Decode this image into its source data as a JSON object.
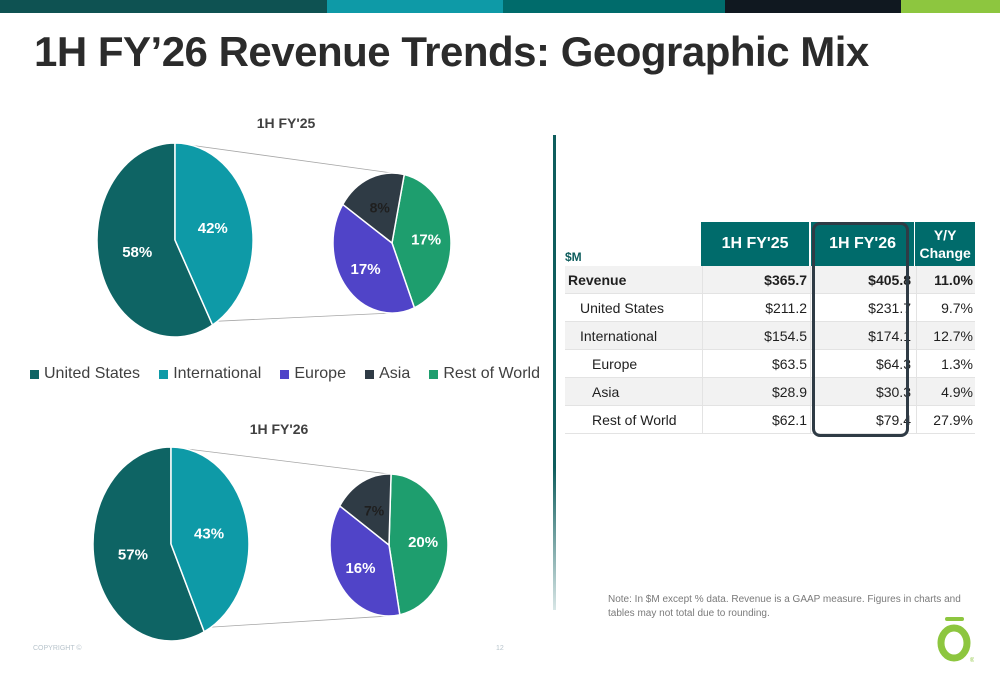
{
  "page_title": "1H FY’26 Revenue Trends: Geographic Mix",
  "top_bar_colors": [
    "#0e5252",
    "#0e9aa7",
    "#006b6b",
    "#101820",
    "#8dc63f"
  ],
  "colors": {
    "united_states": "#0e6464",
    "international": "#0e9aa7",
    "europe": "#5044c8",
    "asia": "#2f3b45",
    "rest_of_world": "#1e9e6e"
  },
  "legend": [
    {
      "label": "United States",
      "color": "#0e6464"
    },
    {
      "label": "International",
      "color": "#0e9aa7"
    },
    {
      "label": "Europe",
      "color": "#5044c8"
    },
    {
      "label": "Asia",
      "color": "#2f3b45"
    },
    {
      "label": "Rest of World",
      "color": "#1e9e6e"
    }
  ],
  "chart_data": [
    {
      "type": "pie",
      "title": "1H FY'25",
      "main": {
        "categories": [
          "United States",
          "International"
        ],
        "values": [
          58,
          42
        ],
        "labels": [
          "58%",
          "42%"
        ]
      },
      "breakout": {
        "categories": [
          "Europe",
          "Asia",
          "Rest of World"
        ],
        "values": [
          17,
          8,
          17
        ],
        "labels": [
          "17%",
          "8%",
          "17%"
        ]
      }
    },
    {
      "type": "pie",
      "title": "1H FY'26",
      "main": {
        "categories": [
          "United States",
          "International"
        ],
        "values": [
          57,
          43
        ],
        "labels": [
          "57%",
          "43%"
        ]
      },
      "breakout": {
        "categories": [
          "Europe",
          "Asia",
          "Rest of World"
        ],
        "values": [
          16,
          7,
          20
        ],
        "labels": [
          "16%",
          "7%",
          "20%"
        ]
      }
    },
    {
      "type": "table",
      "unit_label": "$M",
      "columns": [
        "1H FY'25",
        "1H FY'26",
        "Y/Y Change"
      ],
      "yoy_header_lines": [
        "Y/Y",
        "Change"
      ],
      "rows": [
        {
          "label": "Revenue",
          "fy25": "$365.7",
          "fy26": "$405.8",
          "yoy": "11.0%"
        },
        {
          "label": "United States",
          "fy25": "$211.2",
          "fy26": "$231.7",
          "yoy": "9.7%"
        },
        {
          "label": "International",
          "fy25": "$154.5",
          "fy26": "$174.1",
          "yoy": "12.7%"
        },
        {
          "label": "Europe",
          "fy25": "$63.5",
          "fy26": "$64.3",
          "yoy": "1.3%"
        },
        {
          "label": "Asia",
          "fy25": "$28.9",
          "fy26": "$30.3",
          "yoy": "4.9%"
        },
        {
          "label": "Rest of World",
          "fy25": "$62.1",
          "fy26": "$79.4",
          "yoy": "27.9%"
        }
      ]
    }
  ],
  "note": "Note: In $M except % data. Revenue is a GAAP measure. Figures in charts and tables may not total due to rounding.",
  "footer": {
    "copyright": "COPYRIGHT ©",
    "page_number": "12"
  }
}
